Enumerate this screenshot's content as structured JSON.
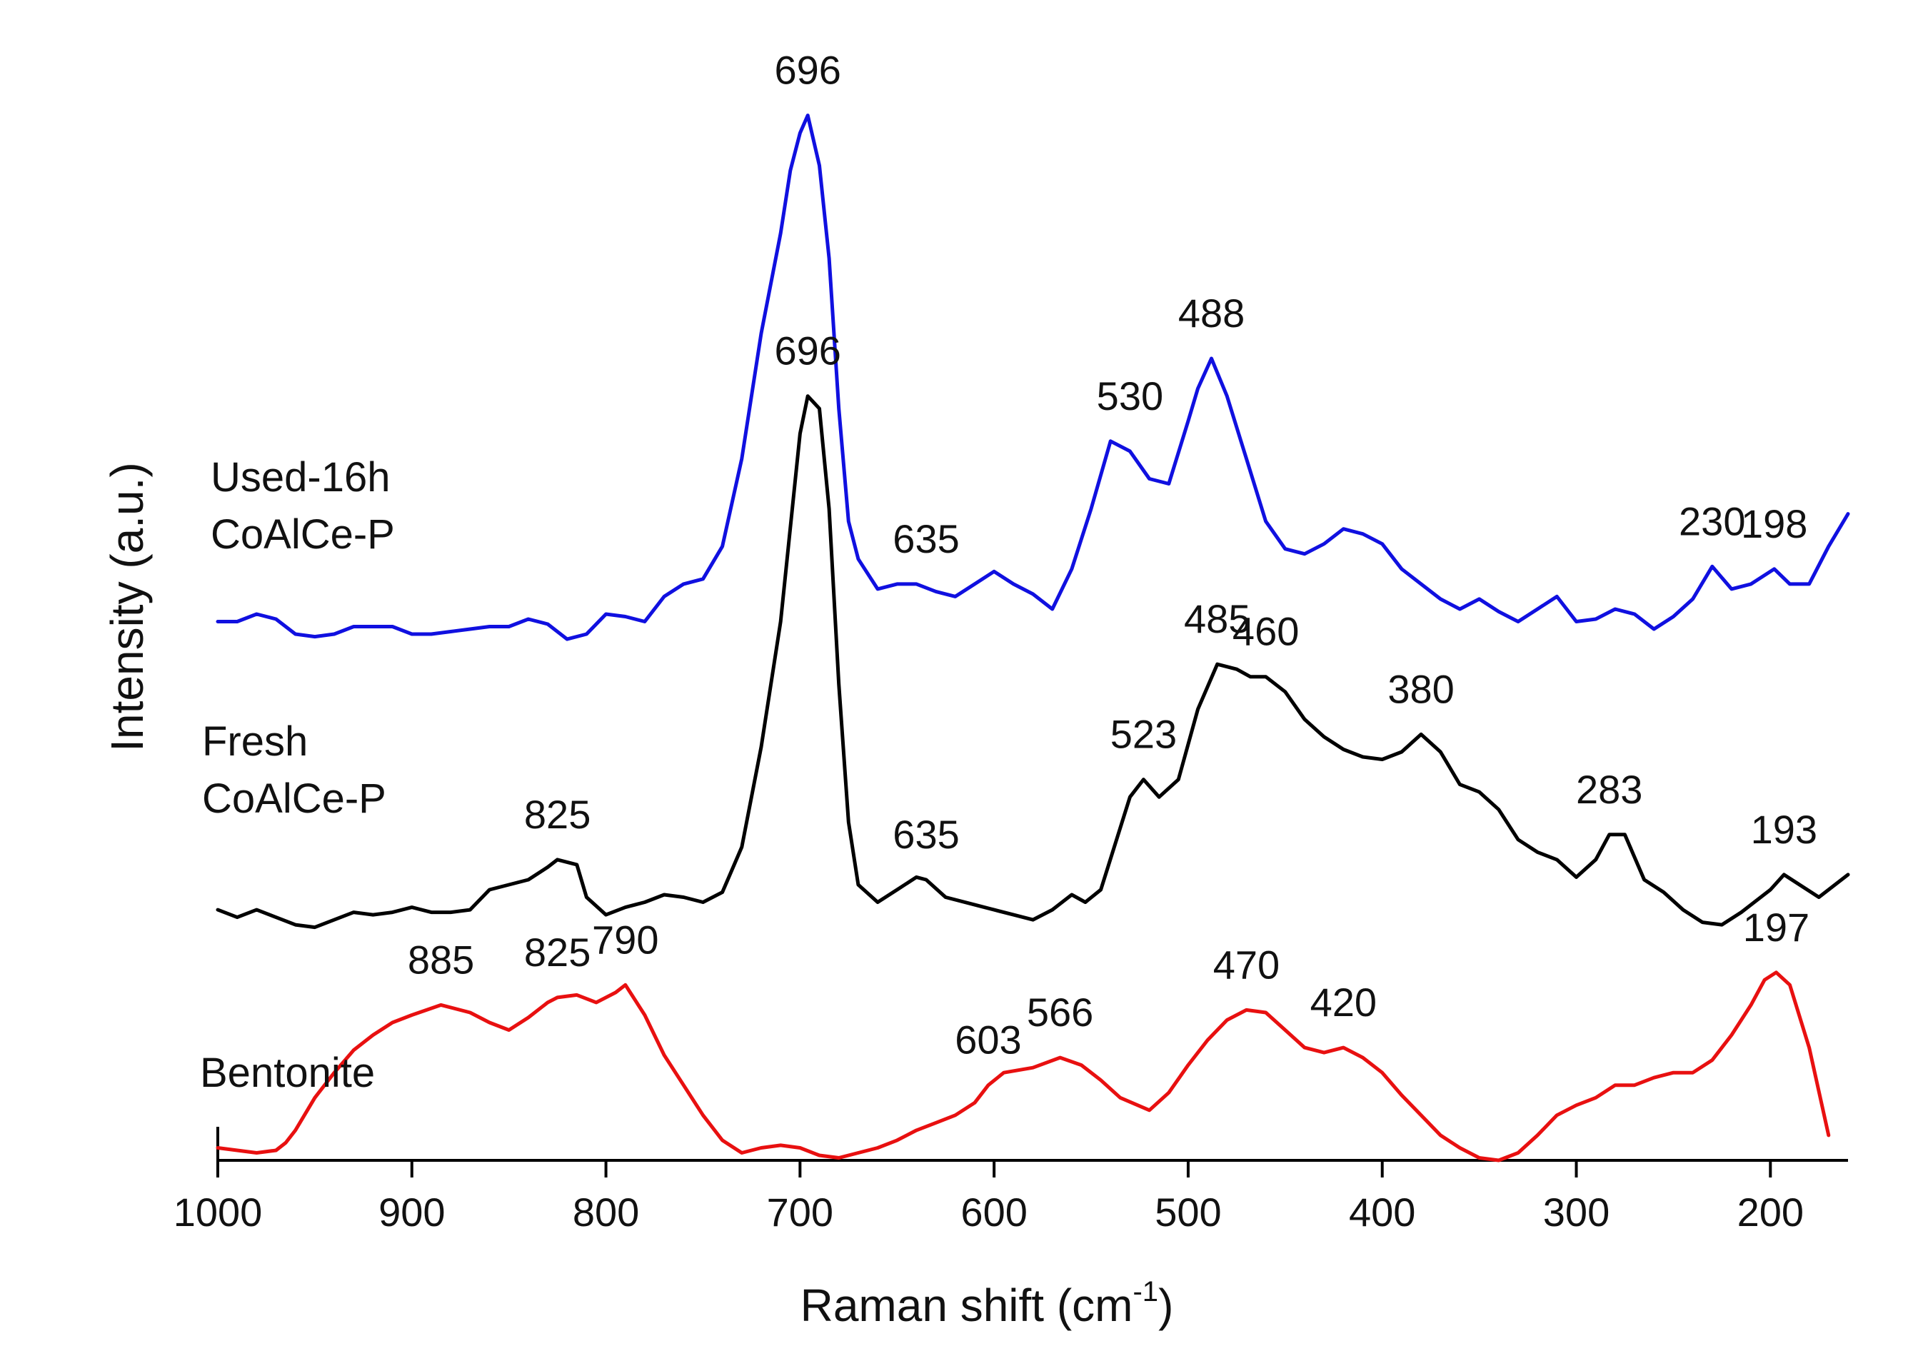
{
  "chart_data": {
    "type": "line",
    "xlabel": "Raman shift (cm",
    "xlabel_sup": "-1",
    "xlabel_close": ")",
    "ylabel": "Intensity (a.u.)",
    "xlim": [
      1000,
      160
    ],
    "ylim": [
      0,
      4.3
    ],
    "x_direction": "reversed",
    "x_ticks": [
      1000,
      900,
      800,
      700,
      600,
      500,
      400,
      300,
      200
    ],
    "x_tick_labels": [
      "1000",
      "900",
      "800",
      "700",
      "600",
      "500",
      "400",
      "300",
      "200"
    ],
    "series": [
      {
        "key": "used",
        "name_line1": "Used-16h",
        "name_line2": "CoAlCe-P",
        "color": "#1010e0",
        "x": [
          1000,
          990,
          980,
          970,
          960,
          950,
          940,
          930,
          920,
          910,
          900,
          890,
          880,
          870,
          860,
          850,
          840,
          830,
          820,
          810,
          800,
          790,
          780,
          770,
          760,
          750,
          740,
          730,
          720,
          710,
          705,
          700,
          696,
          690,
          685,
          680,
          675,
          670,
          660,
          650,
          640,
          630,
          620,
          610,
          600,
          590,
          580,
          570,
          560,
          550,
          540,
          530,
          520,
          510,
          500,
          495,
          488,
          480,
          470,
          460,
          450,
          440,
          430,
          420,
          410,
          400,
          390,
          380,
          370,
          360,
          350,
          340,
          330,
          320,
          310,
          300,
          290,
          280,
          270,
          260,
          250,
          240,
          230,
          220,
          210,
          198,
          190,
          180,
          170,
          160
        ],
        "y": [
          2.15,
          2.15,
          2.18,
          2.16,
          2.1,
          2.09,
          2.1,
          2.13,
          2.13,
          2.13,
          2.1,
          2.1,
          2.11,
          2.12,
          2.13,
          2.13,
          2.16,
          2.14,
          2.08,
          2.1,
          2.18,
          2.17,
          2.15,
          2.25,
          2.3,
          2.32,
          2.45,
          2.8,
          3.3,
          3.7,
          3.95,
          4.1,
          4.17,
          3.97,
          3.6,
          3.0,
          2.55,
          2.4,
          2.28,
          2.3,
          2.3,
          2.27,
          2.25,
          2.3,
          2.35,
          2.3,
          2.26,
          2.2,
          2.36,
          2.6,
          2.87,
          2.83,
          2.72,
          2.7,
          2.95,
          3.08,
          3.2,
          3.05,
          2.8,
          2.55,
          2.44,
          2.42,
          2.46,
          2.52,
          2.5,
          2.46,
          2.36,
          2.3,
          2.24,
          2.2,
          2.24,
          2.19,
          2.15,
          2.2,
          2.25,
          2.15,
          2.16,
          2.2,
          2.18,
          2.12,
          2.17,
          2.24,
          2.37,
          2.28,
          2.3,
          2.36,
          2.3,
          2.3,
          2.45,
          2.58
        ]
      },
      {
        "key": "fresh",
        "name_line1": "Fresh",
        "name_line2": "CoAlCe-P",
        "color": "#000000",
        "x": [
          1000,
          990,
          980,
          970,
          960,
          950,
          940,
          930,
          920,
          910,
          900,
          890,
          880,
          870,
          860,
          850,
          840,
          830,
          825,
          815,
          810,
          800,
          790,
          780,
          770,
          760,
          750,
          740,
          730,
          720,
          710,
          700,
          696,
          690,
          685,
          680,
          675,
          670,
          660,
          650,
          640,
          635,
          625,
          610,
          600,
          590,
          580,
          570,
          560,
          553,
          545,
          530,
          523,
          515,
          505,
          495,
          485,
          475,
          468,
          460,
          450,
          440,
          430,
          420,
          410,
          400,
          390,
          380,
          370,
          360,
          350,
          340,
          330,
          320,
          310,
          300,
          290,
          283,
          275,
          265,
          255,
          245,
          235,
          225,
          215,
          200,
          193,
          185,
          175,
          160
        ],
        "y": [
          1.0,
          0.97,
          1.0,
          0.97,
          0.94,
          0.93,
          0.96,
          0.99,
          0.98,
          0.99,
          1.01,
          0.99,
          0.99,
          1.0,
          1.08,
          1.1,
          1.12,
          1.17,
          1.2,
          1.18,
          1.05,
          0.98,
          1.01,
          1.03,
          1.06,
          1.05,
          1.03,
          1.07,
          1.25,
          1.65,
          2.15,
          2.9,
          3.05,
          3.0,
          2.6,
          1.9,
          1.35,
          1.1,
          1.03,
          1.08,
          1.13,
          1.12,
          1.05,
          1.02,
          1.0,
          0.98,
          0.96,
          1.0,
          1.06,
          1.03,
          1.08,
          1.45,
          1.52,
          1.45,
          1.52,
          1.8,
          1.98,
          1.96,
          1.93,
          1.93,
          1.87,
          1.76,
          1.69,
          1.64,
          1.61,
          1.6,
          1.63,
          1.7,
          1.63,
          1.5,
          1.47,
          1.4,
          1.28,
          1.23,
          1.2,
          1.13,
          1.2,
          1.3,
          1.3,
          1.12,
          1.07,
          1.0,
          0.95,
          0.94,
          0.99,
          1.08,
          1.14,
          1.1,
          1.05,
          1.14
        ]
      },
      {
        "key": "bentonite",
        "name_line1": "Bentonite",
        "name_line2": "",
        "color": "#e81010",
        "x": [
          1000,
          990,
          980,
          970,
          965,
          960,
          950,
          940,
          930,
          920,
          910,
          900,
          885,
          870,
          860,
          850,
          840,
          830,
          825,
          815,
          805,
          795,
          790,
          780,
          770,
          760,
          750,
          740,
          730,
          720,
          710,
          700,
          690,
          680,
          670,
          660,
          650,
          640,
          630,
          620,
          610,
          603,
          595,
          580,
          566,
          555,
          545,
          535,
          520,
          510,
          500,
          490,
          480,
          470,
          460,
          450,
          440,
          430,
          420,
          410,
          400,
          390,
          380,
          370,
          360,
          350,
          340,
          330,
          320,
          310,
          300,
          290,
          280,
          270,
          260,
          250,
          240,
          230,
          220,
          210,
          203,
          197,
          190,
          180,
          170
        ],
        "y": [
          0.05,
          0.04,
          0.03,
          0.04,
          0.07,
          0.12,
          0.25,
          0.35,
          0.44,
          0.5,
          0.55,
          0.58,
          0.62,
          0.59,
          0.55,
          0.52,
          0.57,
          0.63,
          0.65,
          0.66,
          0.63,
          0.67,
          0.7,
          0.58,
          0.42,
          0.3,
          0.18,
          0.08,
          0.03,
          0.05,
          0.06,
          0.05,
          0.02,
          0.01,
          0.03,
          0.05,
          0.08,
          0.12,
          0.15,
          0.18,
          0.23,
          0.3,
          0.35,
          0.37,
          0.41,
          0.38,
          0.32,
          0.25,
          0.2,
          0.27,
          0.38,
          0.48,
          0.56,
          0.6,
          0.59,
          0.52,
          0.45,
          0.43,
          0.45,
          0.41,
          0.35,
          0.26,
          0.18,
          0.1,
          0.05,
          0.01,
          0.0,
          0.03,
          0.1,
          0.18,
          0.22,
          0.25,
          0.3,
          0.3,
          0.33,
          0.35,
          0.35,
          0.4,
          0.5,
          0.62,
          0.72,
          0.75,
          0.7,
          0.45,
          0.1
        ]
      }
    ],
    "peak_labels": [
      {
        "series": "used",
        "x": 696,
        "y": 4.17,
        "text": "696"
      },
      {
        "series": "used",
        "x": 635,
        "y": 2.3,
        "text": "635"
      },
      {
        "series": "used",
        "x": 530,
        "y": 2.87,
        "text": "530"
      },
      {
        "series": "used",
        "x": 488,
        "y": 3.2,
        "text": "488"
      },
      {
        "series": "used",
        "x": 230,
        "y": 2.37,
        "text": "230"
      },
      {
        "series": "used",
        "x": 198,
        "y": 2.36,
        "text": "198"
      },
      {
        "series": "fresh",
        "x": 696,
        "y": 3.05,
        "text": "696"
      },
      {
        "series": "fresh",
        "x": 825,
        "y": 1.2,
        "text": "825"
      },
      {
        "series": "fresh",
        "x": 635,
        "y": 1.12,
        "text": "635"
      },
      {
        "series": "fresh",
        "x": 523,
        "y": 1.52,
        "text": "523"
      },
      {
        "series": "fresh",
        "x": 485,
        "y": 1.98,
        "text": "485"
      },
      {
        "series": "fresh",
        "x": 460,
        "y": 1.93,
        "text": "460"
      },
      {
        "series": "fresh",
        "x": 380,
        "y": 1.7,
        "text": "380"
      },
      {
        "series": "fresh",
        "x": 283,
        "y": 1.3,
        "text": "283"
      },
      {
        "series": "fresh",
        "x": 193,
        "y": 1.14,
        "text": "193"
      },
      {
        "series": "bentonite",
        "x": 885,
        "y": 0.62,
        "text": "885"
      },
      {
        "series": "bentonite",
        "x": 825,
        "y": 0.65,
        "text": "825"
      },
      {
        "series": "bentonite",
        "x": 790,
        "y": 0.7,
        "text": "790"
      },
      {
        "series": "bentonite",
        "x": 603,
        "y": 0.3,
        "text": "603"
      },
      {
        "series": "bentonite",
        "x": 566,
        "y": 0.41,
        "text": "566"
      },
      {
        "series": "bentonite",
        "x": 470,
        "y": 0.6,
        "text": "470"
      },
      {
        "series": "bentonite",
        "x": 420,
        "y": 0.45,
        "text": "420"
      },
      {
        "series": "bentonite",
        "x": 197,
        "y": 0.75,
        "text": "197"
      }
    ]
  }
}
